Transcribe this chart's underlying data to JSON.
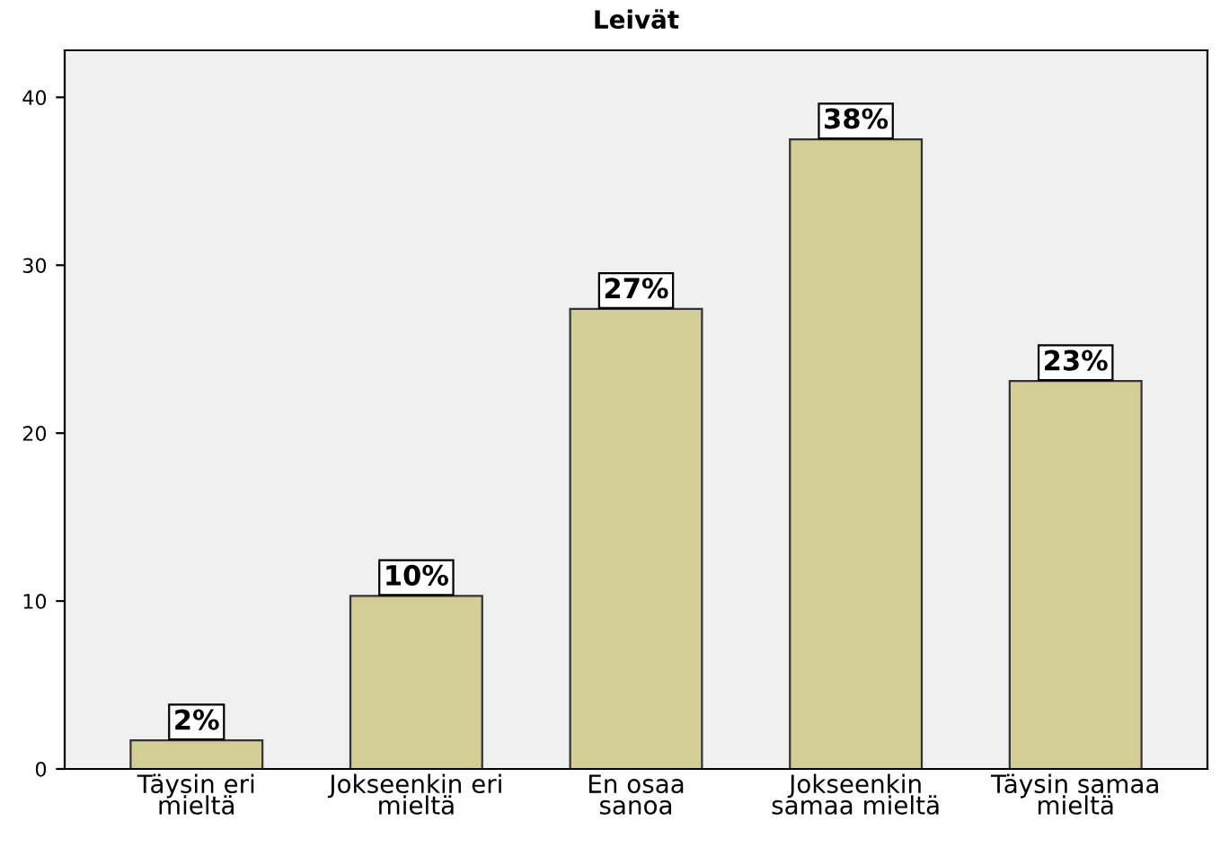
{
  "chart_data": {
    "type": "bar",
    "title": "Leivät",
    "categories": [
      "Täysin eri\nmieltä",
      "Jokseenkin eri\nmieltä",
      "En osaa\nsanoa",
      "Jokseenkin\nsamaa mieltä",
      "Täysin samaa\nmieltä"
    ],
    "values": [
      1.7,
      10.3,
      27.4,
      37.5,
      23.1
    ],
    "value_labels": [
      "2%",
      "10%",
      "27%",
      "38%",
      "23%"
    ],
    "color": "#d3cd96",
    "ylim": [
      0,
      42.8
    ],
    "yticks": [
      0,
      10,
      20,
      30,
      40
    ],
    "grid": false
  }
}
